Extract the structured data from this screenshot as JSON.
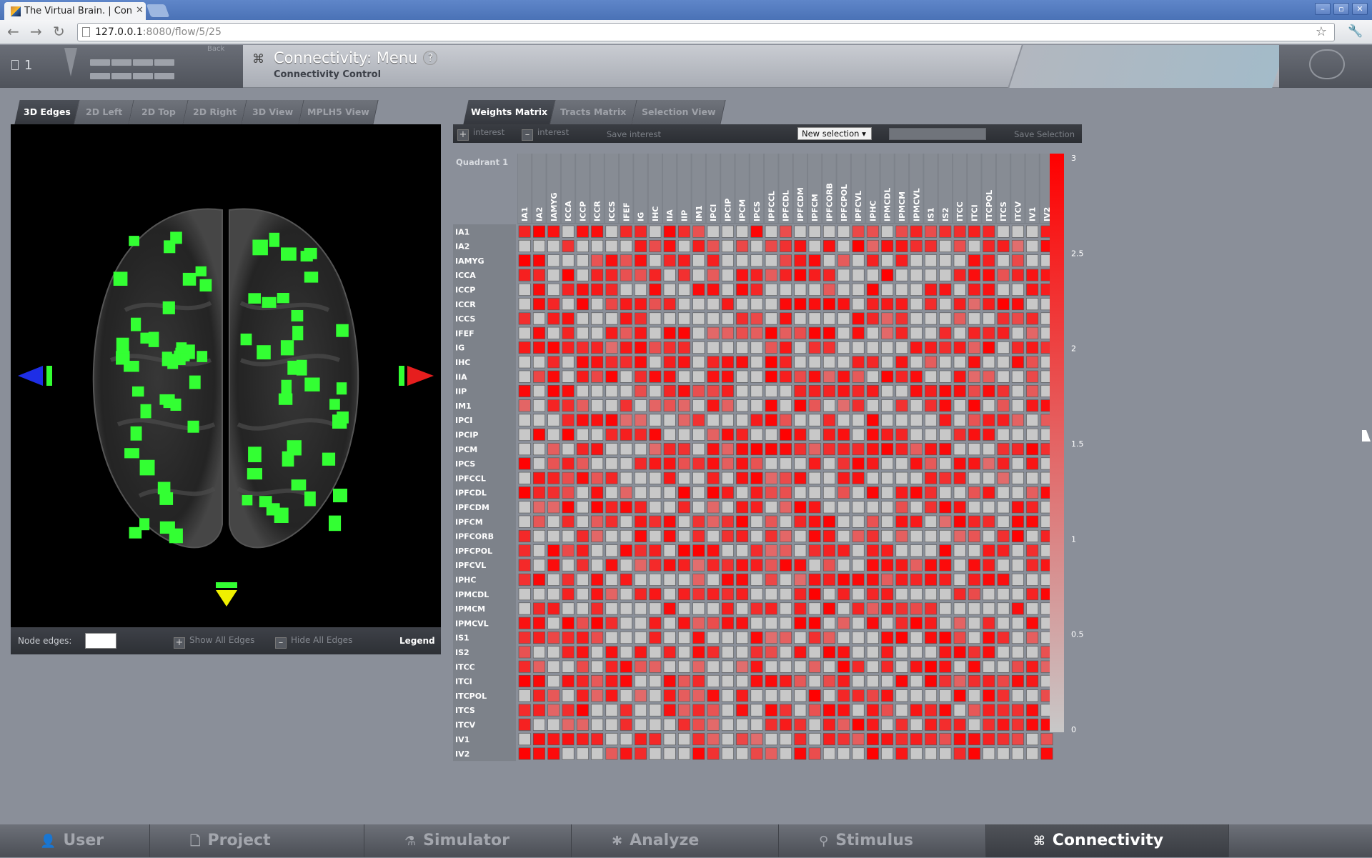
{
  "browser": {
    "tab_title": "The Virtual Brain. | Con",
    "url_host": "127.0.0.1",
    "url_rest": ":8080/flow/5/25"
  },
  "header": {
    "project_count": "1",
    "back_label": "Back",
    "title": "Connectivity: Menu",
    "subtitle": "Connectivity Control"
  },
  "viewer_tabs": [
    {
      "label": "3D Edges",
      "active": true
    },
    {
      "label": "2D Left",
      "active": false
    },
    {
      "label": "2D Top",
      "active": false
    },
    {
      "label": "2D Right",
      "active": false
    },
    {
      "label": "3D View",
      "active": false
    },
    {
      "label": "MPLH5 View",
      "active": false
    }
  ],
  "matrix_tabs": [
    {
      "label": "Weights Matrix",
      "active": true
    },
    {
      "label": "Tracts Matrix",
      "active": false
    },
    {
      "label": "Selection View",
      "active": false
    }
  ],
  "viewer_footer": {
    "node_edges_label": "Node edges:",
    "show_all_edges": "Show All Edges",
    "hide_all_edges": "Hide All Edges",
    "legend": "Legend"
  },
  "matrix_toolbar": {
    "add_interest": "interest",
    "remove_interest": "interest",
    "save_interest": "Save interest",
    "selection_value": "New selection",
    "save_selection": "Save Selection"
  },
  "quadrant_label": "Quadrant 1",
  "regions": [
    "IA1",
    "IA2",
    "IAMYG",
    "ICCA",
    "ICCP",
    "ICCR",
    "ICCS",
    "IFEF",
    "IG",
    "IHC",
    "IIA",
    "IIP",
    "IM1",
    "IPCI",
    "IPCIP",
    "IPCM",
    "IPCS",
    "IPFCCL",
    "IPFCDL",
    "IPFCDM",
    "IPFCM",
    "IPFCORB",
    "IPFCPOL",
    "IPFCVL",
    "IPHC",
    "IPMCDL",
    "IPMCM",
    "IPMCVL",
    "IS1",
    "IS2",
    "ITCC",
    "ITCI",
    "ITCPOL",
    "ITCS",
    "ITCV",
    "IV1",
    "IV2"
  ],
  "colorbar": {
    "ticks": [
      "3",
      "2.5",
      "2",
      "1.5",
      "1",
      "0.5",
      "0"
    ],
    "max": 3,
    "min": 0,
    "max_color": "#ff0000",
    "min_color": "#c8c8c8"
  },
  "bottom_nav": [
    {
      "label": "User",
      "icon": "user-icon",
      "active": false
    },
    {
      "label": "Project",
      "icon": "project-icon",
      "active": false
    },
    {
      "label": "Simulator",
      "icon": "simulator-icon",
      "active": false
    },
    {
      "label": "Analyze",
      "icon": "analyze-icon",
      "active": false
    },
    {
      "label": "Stimulus",
      "icon": "stimulus-icon",
      "active": false
    },
    {
      "label": "Connectivity",
      "icon": "connectivity-icon",
      "active": true
    }
  ],
  "colors": {
    "node_green": "#33ff33",
    "left_arrow": "#1e2ee6",
    "right_arrow": "#e61e1e",
    "bottom_arrow": "#f0f000"
  }
}
